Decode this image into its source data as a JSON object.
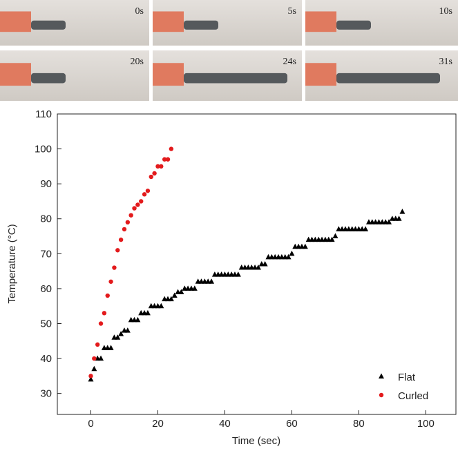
{
  "photo_labels": [
    "0s",
    "5s",
    "10s",
    "20s",
    "24s",
    "31s"
  ],
  "chart_data": {
    "type": "scatter",
    "x_label": "Time (sec)",
    "y_label": "Temperature (°C)",
    "xlim": [
      -10,
      109
    ],
    "ylim": [
      24,
      110
    ],
    "xticks": [
      0,
      20,
      40,
      60,
      80,
      100
    ],
    "yticks": [
      30,
      40,
      50,
      60,
      70,
      80,
      90,
      100,
      110
    ],
    "legend": "lower right",
    "series": [
      {
        "name": "Flat",
        "color": "#000000",
        "marker": "triangle",
        "x": [
          0,
          1,
          2,
          3,
          4,
          5,
          6,
          7,
          8,
          9,
          10,
          11,
          12,
          13,
          14,
          15,
          16,
          17,
          18,
          19,
          20,
          21,
          22,
          23,
          24,
          25,
          26,
          27,
          28,
          29,
          30,
          31,
          32,
          33,
          34,
          35,
          36,
          37,
          38,
          39,
          40,
          41,
          42,
          43,
          44,
          45,
          46,
          47,
          48,
          49,
          50,
          51,
          52,
          53,
          54,
          55,
          56,
          57,
          58,
          59,
          60,
          61,
          62,
          63,
          64,
          65,
          66,
          67,
          68,
          69,
          70,
          71,
          72,
          73,
          74,
          75,
          76,
          77,
          78,
          79,
          80,
          81,
          82,
          83,
          84,
          85,
          86,
          87,
          88,
          89,
          90,
          91,
          92,
          93
        ],
        "values": [
          34,
          37,
          40,
          40,
          43,
          43,
          43,
          46,
          46,
          47,
          48,
          48,
          51,
          51,
          51,
          53,
          53,
          53,
          55,
          55,
          55,
          55,
          57,
          57,
          57,
          58,
          59,
          59,
          60,
          60,
          60,
          60,
          62,
          62,
          62,
          62,
          62,
          64,
          64,
          64,
          64,
          64,
          64,
          64,
          64,
          66,
          66,
          66,
          66,
          66,
          66,
          67,
          67,
          69,
          69,
          69,
          69,
          69,
          69,
          69,
          70,
          72,
          72,
          72,
          72,
          74,
          74,
          74,
          74,
          74,
          74,
          74,
          74,
          75,
          77,
          77,
          77,
          77,
          77,
          77,
          77,
          77,
          77,
          79,
          79,
          79,
          79,
          79,
          79,
          79,
          80,
          80,
          80,
          82
        ]
      },
      {
        "name": "Curled",
        "color": "#e31a1c",
        "marker": "circle",
        "x": [
          0,
          1,
          2,
          3,
          4,
          5,
          6,
          7,
          8,
          9,
          10,
          11,
          12,
          13,
          14,
          15,
          16,
          17,
          18,
          19,
          20,
          21,
          22,
          23,
          24
        ],
        "values": [
          35,
          40,
          44,
          50,
          53,
          58,
          62,
          66,
          71,
          74,
          77,
          79,
          81,
          83,
          84,
          85,
          87,
          88,
          92,
          93,
          95,
          95,
          97,
          97,
          100
        ]
      }
    ]
  }
}
